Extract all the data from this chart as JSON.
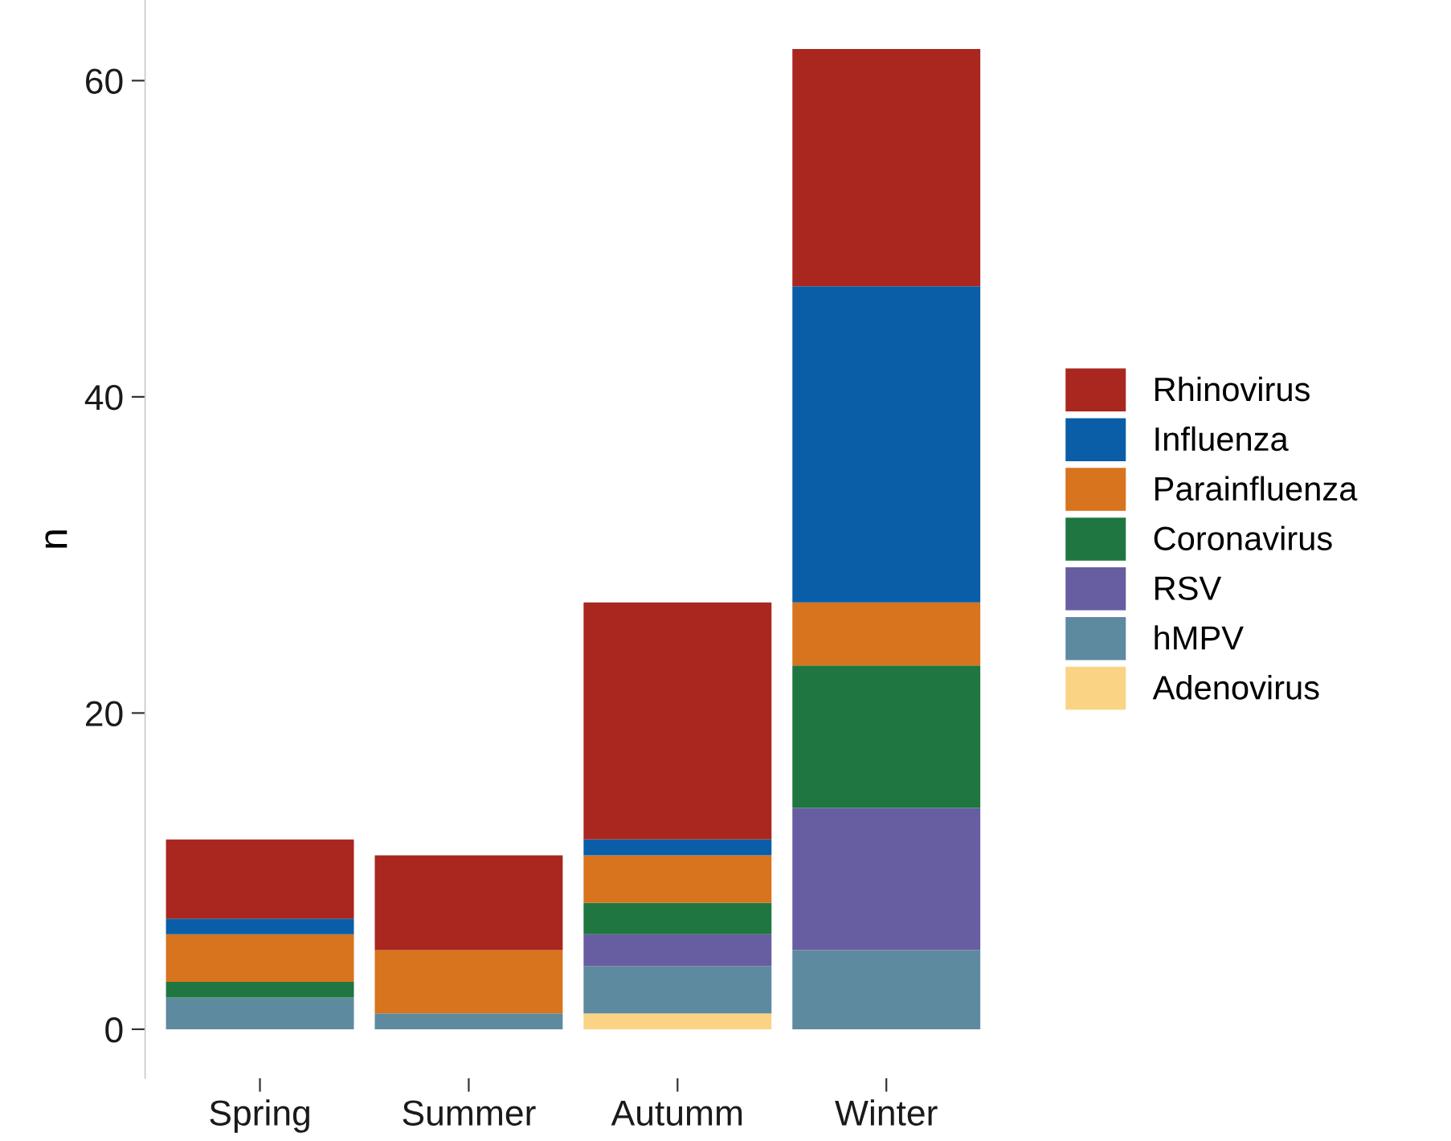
{
  "chart_data": {
    "type": "bar",
    "stacked": true,
    "ylabel": "n",
    "categories": [
      "Spring",
      "Summer",
      "Autumm",
      "Winter"
    ],
    "series": [
      {
        "name": "Adenovirus",
        "color": "#fbd384",
        "values": [
          0,
          0,
          1,
          0
        ]
      },
      {
        "name": "hMPV",
        "color": "#5e8aa0",
        "values": [
          2,
          1,
          3,
          5
        ]
      },
      {
        "name": "RSV",
        "color": "#675ea1",
        "values": [
          0,
          0,
          2,
          9
        ]
      },
      {
        "name": "Coronavirus",
        "color": "#1f7640",
        "values": [
          1,
          0,
          2,
          9
        ]
      },
      {
        "name": "Parainfluenza",
        "color": "#d8731e",
        "values": [
          3,
          4,
          3,
          4
        ]
      },
      {
        "name": "Influenza",
        "color": "#0a5ea8",
        "values": [
          1,
          0,
          1,
          20
        ]
      },
      {
        "name": "Rhinovirus",
        "color": "#a9271f",
        "values": [
          5,
          6,
          15,
          15
        ]
      }
    ],
    "ylim": [
      -3.1,
      65.1
    ],
    "yticks": [
      0,
      20,
      40,
      60
    ],
    "grid": false,
    "legend": "right"
  }
}
